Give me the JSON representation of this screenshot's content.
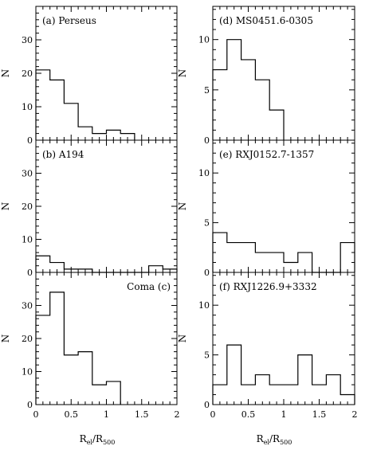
{
  "chart_data": [
    {
      "type": "histogram",
      "label": "(a) Perseus",
      "label_position": "top-left",
      "bin_edges": [
        0,
        0.2,
        0.4,
        0.6,
        0.8,
        1.0,
        1.2,
        1.4
      ],
      "values": [
        21,
        18,
        11,
        4,
        2,
        3,
        2
      ],
      "xlim": [
        0,
        2
      ],
      "ylim": [
        0,
        40
      ],
      "yticks": [
        0,
        10,
        20,
        30
      ],
      "ylabel": "N",
      "xlabel": "",
      "show_x_tick_labels": false
    },
    {
      "type": "histogram",
      "label": "(b) A194",
      "label_position": "top-left",
      "bin_edges": [
        0,
        0.2,
        0.4,
        0.6,
        0.8,
        1.0,
        1.2,
        1.4,
        1.6,
        1.8,
        2.0
      ],
      "values": [
        5,
        3,
        1,
        1,
        0,
        0,
        0,
        0,
        2,
        1
      ],
      "xlim": [
        0,
        2
      ],
      "ylim": [
        0,
        40
      ],
      "yticks": [
        0,
        10,
        20,
        30
      ],
      "ylabel": "N",
      "xlabel": "",
      "show_x_tick_labels": false
    },
    {
      "type": "histogram",
      "label": "Coma (c)",
      "label_position": "top-right",
      "bin_edges": [
        0,
        0.2,
        0.4,
        0.6,
        0.8,
        1.0,
        1.2
      ],
      "values": [
        27,
        34,
        15,
        16,
        6,
        7
      ],
      "xlim": [
        0,
        2
      ],
      "ylim": [
        0,
        40
      ],
      "yticks": [
        0,
        10,
        20,
        30
      ],
      "xticks": [
        0,
        0.5,
        1,
        1.5,
        2
      ],
      "xtick_labels": [
        "0",
        "0.5",
        "1",
        "1.5",
        "2"
      ],
      "ylabel": "N",
      "xlabel": "Rel/R500",
      "show_x_tick_labels": true
    },
    {
      "type": "histogram",
      "label": "(d) MS0451.6-0305",
      "label_position": "top-left",
      "bin_edges": [
        0,
        0.2,
        0.4,
        0.6,
        0.8,
        1.0
      ],
      "values": [
        7,
        10,
        8,
        6,
        3
      ],
      "xlim": [
        0,
        2
      ],
      "ylim": [
        0,
        13.3
      ],
      "yticks": [
        0,
        5,
        10
      ],
      "ylabel": "N",
      "xlabel": "",
      "show_x_tick_labels": false
    },
    {
      "type": "histogram",
      "label": "(e) RXJ0152.7-1357",
      "label_position": "top-left",
      "bin_edges": [
        0,
        0.2,
        0.4,
        0.6,
        0.8,
        1.0,
        1.2,
        1.4,
        1.6,
        1.8,
        2.0
      ],
      "values": [
        4,
        3,
        3,
        2,
        2,
        1,
        2,
        0,
        0,
        3
      ],
      "xlim": [
        0,
        2
      ],
      "ylim": [
        0,
        13.3
      ],
      "yticks": [
        0,
        5,
        10
      ],
      "ylabel": "N",
      "xlabel": "",
      "show_x_tick_labels": false
    },
    {
      "type": "histogram",
      "label": "(f) RXJ1226.9+3332",
      "label_position": "top-left",
      "bin_edges": [
        0,
        0.2,
        0.4,
        0.6,
        0.8,
        1.0,
        1.2,
        1.4,
        1.6,
        1.8,
        2.0
      ],
      "values": [
        2,
        6,
        2,
        3,
        2,
        2,
        5,
        2,
        3,
        1
      ],
      "xlim": [
        0,
        2
      ],
      "ylim": [
        0,
        13.3
      ],
      "yticks": [
        0,
        5,
        10
      ],
      "xticks": [
        0,
        0.5,
        1,
        1.5,
        2
      ],
      "xtick_labels": [
        "0",
        "0.5",
        "1",
        "1.5",
        "2"
      ],
      "ylabel": "N",
      "xlabel": "Rel/R500",
      "show_x_tick_labels": true
    }
  ],
  "axis_text": {
    "xlabel_main": "R",
    "xlabel_sub1": "el",
    "xlabel_sep": "/R",
    "xlabel_sub2": "500"
  }
}
